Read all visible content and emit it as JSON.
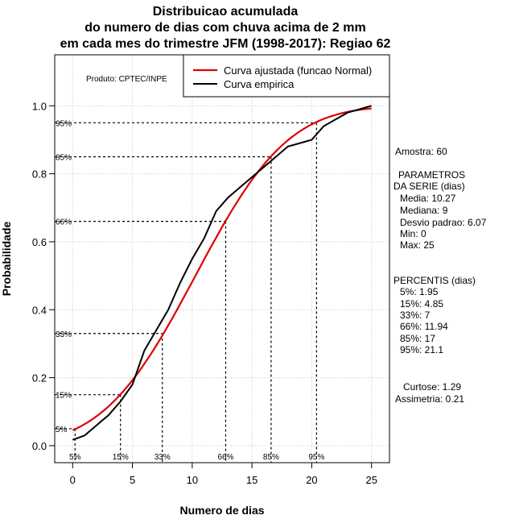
{
  "title_lines": [
    "Distribuicao acumulada",
    "do numero de dias com chuva acima de 2 mm",
    "em cada mes do trimestre JFM (1998-2017): Regiao 62"
  ],
  "product_label": "Produto: CPTEC/INPE",
  "sidebar": {
    "amostra": "Amostra: 60",
    "param_title_1": "PARAMETROS",
    "param_title_2": "DA SERIE (dias)",
    "params": [
      "Media: 10.27",
      "Mediana: 9",
      "Desvio padrao: 6.07",
      "Min: 0",
      "Max: 25"
    ],
    "percentis_title": "PERCENTIS (dias)",
    "percentis": [
      "5%: 1.95",
      "15%: 4.85",
      "33%: 7",
      "66%: 11.94",
      "85%: 17",
      "95%: 21.1"
    ],
    "curtose": "Curtose: 1.29",
    "assimetria": "Assimetria: 0.21"
  },
  "chart_data": {
    "type": "line",
    "xlabel": "Numero de dias",
    "ylabel": "Probabilidade",
    "xlim": [
      -1.5,
      26.5
    ],
    "ylim": [
      -0.05,
      1.15
    ],
    "x_ticks": [
      0,
      5,
      10,
      15,
      20,
      25
    ],
    "y_ticks": [
      0.0,
      0.2,
      0.4,
      0.6,
      0.8,
      1.0
    ],
    "y_tick_labels": [
      "0.0",
      "0.2",
      "0.4",
      "0.6",
      "0.8",
      "1.0"
    ],
    "grid": true,
    "legend_position": "top-right",
    "fitted_curve": {
      "name": "Curva ajustada (funcao Normal)",
      "color": "#dd0000",
      "mean": 10.27,
      "sd": 6.07,
      "x_range": [
        0,
        25
      ]
    },
    "series": [
      {
        "name": "Curva empirica",
        "color": "#000000",
        "x": [
          0,
          1,
          2,
          3,
          4,
          5,
          6,
          7,
          8,
          9,
          10,
          11,
          12,
          13,
          14,
          15,
          16,
          17,
          18,
          19,
          20,
          21,
          22,
          23,
          24,
          25
        ],
        "y": [
          0.017,
          0.03,
          0.06,
          0.09,
          0.13,
          0.18,
          0.28,
          0.34,
          0.4,
          0.48,
          0.55,
          0.61,
          0.69,
          0.73,
          0.76,
          0.79,
          0.82,
          0.85,
          0.88,
          0.89,
          0.9,
          0.94,
          0.96,
          0.98,
          0.99,
          1.0
        ]
      }
    ],
    "percentile_markers": [
      {
        "label": "5%",
        "p": 0.05,
        "x": 0.2
      },
      {
        "label": "15%",
        "p": 0.15,
        "x": 4.0
      },
      {
        "label": "33%",
        "p": 0.33,
        "x": 7.5
      },
      {
        "label": "66%",
        "p": 0.66,
        "x": 12.8
      },
      {
        "label": "85%",
        "p": 0.85,
        "x": 16.6
      },
      {
        "label": "95%",
        "p": 0.95,
        "x": 20.4
      }
    ]
  }
}
